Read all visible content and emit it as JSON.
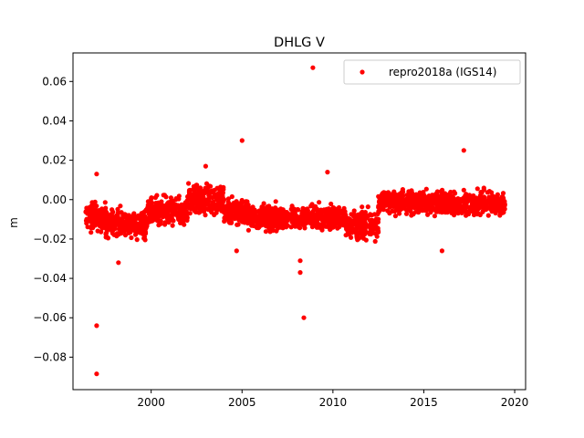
{
  "chart_data": {
    "type": "scatter",
    "title": "DHLG V",
    "xlabel": "",
    "ylabel": "m",
    "xlim": [
      1995.7,
      2020.6
    ],
    "ylim": [
      -0.0965,
      0.0745
    ],
    "xticks": [
      2000,
      2005,
      2010,
      2015,
      2020
    ],
    "xtick_labels": [
      "2000",
      "2005",
      "2010",
      "2015",
      "2020"
    ],
    "yticks": [
      -0.08,
      -0.06,
      -0.04,
      -0.02,
      0.0,
      0.02,
      0.04,
      0.06
    ],
    "ytick_labels": [
      "−0.08",
      "−0.06",
      "−0.04",
      "−0.02",
      "0.00",
      "0.02",
      "0.04",
      "0.06"
    ],
    "legend": {
      "position": "upper-right",
      "entries": [
        "repro2018a (IGS14)"
      ]
    },
    "grid": false,
    "series": [
      {
        "name": "repro2018a (IGS14)",
        "color": "#ff0000",
        "marker": "circle",
        "dense_band": [
          {
            "x": [
              1996.4,
              1997.5
            ],
            "center": -0.009,
            "spread": 0.006
          },
          {
            "x": [
              1997.5,
              1999.8
            ],
            "center": -0.012,
            "spread": 0.006
          },
          {
            "x": [
              1999.8,
              2002.0
            ],
            "center": -0.006,
            "spread": 0.006
          },
          {
            "x": [
              2002.0,
              2004.0
            ],
            "center": 0.0,
            "spread": 0.006
          },
          {
            "x": [
              2004.0,
              2005.3
            ],
            "center": -0.006,
            "spread": 0.006
          },
          {
            "x": [
              2005.3,
              2010.7
            ],
            "center": -0.009,
            "spread": 0.005
          },
          {
            "x": [
              2010.7,
              2012.5
            ],
            "center": -0.013,
            "spread": 0.006
          },
          {
            "x": [
              2012.5,
              2015.2
            ],
            "center": -0.001,
            "spread": 0.005
          },
          {
            "x": [
              2015.2,
              2019.5
            ],
            "center": -0.002,
            "spread": 0.005
          }
        ],
        "outliers": [
          {
            "x": 1997.0,
            "y": -0.0885
          },
          {
            "x": 1997.0,
            "y": -0.064
          },
          {
            "x": 1997.0,
            "y": 0.013
          },
          {
            "x": 2005.0,
            "y": 0.03
          },
          {
            "x": 2008.2,
            "y": -0.031
          },
          {
            "x": 2008.2,
            "y": -0.037
          },
          {
            "x": 2008.4,
            "y": -0.06
          },
          {
            "x": 2008.9,
            "y": 0.067
          },
          {
            "x": 2009.7,
            "y": 0.014
          },
          {
            "x": 2017.2,
            "y": 0.025
          },
          {
            "x": 2016.0,
            "y": -0.026
          },
          {
            "x": 2004.7,
            "y": -0.026
          },
          {
            "x": 1998.2,
            "y": -0.032
          },
          {
            "x": 2003.0,
            "y": 0.017
          }
        ]
      }
    ]
  }
}
